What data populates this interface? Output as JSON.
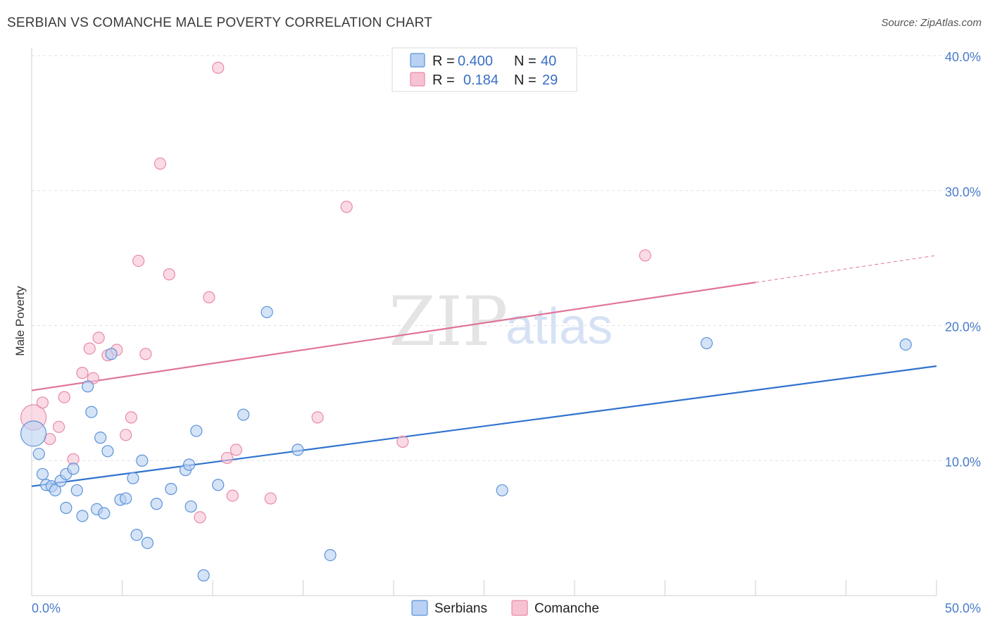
{
  "title": "SERBIAN VS COMANCHE MALE POVERTY CORRELATION CHART",
  "source": "Source: ZipAtlas.com",
  "watermark": {
    "zip": "ZIP",
    "atlas": "atlas"
  },
  "colors": {
    "serbians": "#5b93d9",
    "serbians_fill": "#b9d1f2",
    "serbians_line": "#2f72cf",
    "comanche": "#e98aa8",
    "comanche_fill": "#f7c3d3",
    "comanche_line": "#e07499",
    "tick_label": "#4a7cc9"
  },
  "legend": {
    "rows": [
      {
        "r_label": "R =",
        "r_value": "0.400",
        "n_label": "N =",
        "n_value": "40"
      },
      {
        "r_label": "R =",
        "r_value": "0.184",
        "n_label": "N =",
        "n_value": "29"
      }
    ]
  },
  "chart_data": {
    "type": "scatter",
    "title": "SERBIAN VS COMANCHE MALE POVERTY CORRELATION CHART",
    "xlabel": "",
    "ylabel": "Male Poverty",
    "xlim": [
      0,
      50
    ],
    "ylim": [
      0,
      40
    ],
    "x_tick_labels": [
      "0.0%",
      "50.0%"
    ],
    "y_ticks": [
      10,
      20,
      30,
      40
    ],
    "y_tick_labels": [
      "10.0%",
      "20.0%",
      "30.0%",
      "40.0%"
    ],
    "grid": true,
    "legend_position": "top-center",
    "series": [
      {
        "name": "Serbians",
        "r": 0.4,
        "n": 40,
        "trend": {
          "x": [
            0,
            50
          ],
          "y": [
            8.1,
            17.0
          ]
        },
        "points": [
          {
            "x": 0.1,
            "y": 12.0,
            "big": true
          },
          {
            "x": 0.4,
            "y": 10.5
          },
          {
            "x": 0.6,
            "y": 9.0
          },
          {
            "x": 0.8,
            "y": 8.2
          },
          {
            "x": 1.1,
            "y": 8.1
          },
          {
            "x": 1.3,
            "y": 7.8
          },
          {
            "x": 1.6,
            "y": 8.5
          },
          {
            "x": 1.9,
            "y": 9.0
          },
          {
            "x": 2.3,
            "y": 9.4
          },
          {
            "x": 1.9,
            "y": 6.5
          },
          {
            "x": 2.5,
            "y": 7.8
          },
          {
            "x": 2.8,
            "y": 5.9
          },
          {
            "x": 3.1,
            "y": 15.5
          },
          {
            "x": 3.3,
            "y": 13.6
          },
          {
            "x": 3.6,
            "y": 6.4
          },
          {
            "x": 3.8,
            "y": 11.7
          },
          {
            "x": 4.0,
            "y": 6.1
          },
          {
            "x": 4.2,
            "y": 10.7
          },
          {
            "x": 4.4,
            "y": 17.9
          },
          {
            "x": 4.9,
            "y": 7.1
          },
          {
            "x": 5.2,
            "y": 7.2
          },
          {
            "x": 5.6,
            "y": 8.7
          },
          {
            "x": 5.8,
            "y": 4.5
          },
          {
            "x": 6.1,
            "y": 10.0
          },
          {
            "x": 6.4,
            "y": 3.9
          },
          {
            "x": 6.9,
            "y": 6.8
          },
          {
            "x": 7.7,
            "y": 7.9
          },
          {
            "x": 8.5,
            "y": 9.3
          },
          {
            "x": 8.7,
            "y": 9.7
          },
          {
            "x": 8.8,
            "y": 6.6
          },
          {
            "x": 9.1,
            "y": 12.2
          },
          {
            "x": 9.5,
            "y": 1.5
          },
          {
            "x": 10.3,
            "y": 8.2
          },
          {
            "x": 11.7,
            "y": 13.4
          },
          {
            "x": 13.0,
            "y": 21.0
          },
          {
            "x": 14.7,
            "y": 10.8
          },
          {
            "x": 16.5,
            "y": 3.0
          },
          {
            "x": 26.0,
            "y": 7.8
          },
          {
            "x": 37.3,
            "y": 18.7
          },
          {
            "x": 48.3,
            "y": 18.6
          }
        ]
      },
      {
        "name": "Comanche",
        "r": 0.184,
        "n": 29,
        "trend": {
          "x": [
            0,
            50
          ],
          "y": [
            15.2,
            25.2
          ],
          "solid_until_x": 40
        },
        "points": [
          {
            "x": 0.1,
            "y": 13.2,
            "big": true
          },
          {
            "x": 0.6,
            "y": 14.3
          },
          {
            "x": 1.0,
            "y": 11.6
          },
          {
            "x": 1.5,
            "y": 12.5
          },
          {
            "x": 1.8,
            "y": 14.7
          },
          {
            "x": 2.3,
            "y": 10.1
          },
          {
            "x": 2.8,
            "y": 16.5
          },
          {
            "x": 3.2,
            "y": 18.3
          },
          {
            "x": 3.4,
            "y": 16.1
          },
          {
            "x": 3.7,
            "y": 19.1
          },
          {
            "x": 4.2,
            "y": 17.8
          },
          {
            "x": 4.7,
            "y": 18.2
          },
          {
            "x": 5.2,
            "y": 11.9
          },
          {
            "x": 5.5,
            "y": 13.2
          },
          {
            "x": 5.9,
            "y": 24.8
          },
          {
            "x": 6.3,
            "y": 17.9
          },
          {
            "x": 7.1,
            "y": 32.0
          },
          {
            "x": 7.6,
            "y": 23.8
          },
          {
            "x": 9.3,
            "y": 5.8
          },
          {
            "x": 9.8,
            "y": 22.1
          },
          {
            "x": 10.8,
            "y": 10.2
          },
          {
            "x": 10.3,
            "y": 39.1
          },
          {
            "x": 11.1,
            "y": 7.4
          },
          {
            "x": 11.3,
            "y": 10.8
          },
          {
            "x": 13.2,
            "y": 7.2
          },
          {
            "x": 15.8,
            "y": 13.2
          },
          {
            "x": 17.4,
            "y": 28.8
          },
          {
            "x": 20.5,
            "y": 11.4
          },
          {
            "x": 33.9,
            "y": 25.2
          }
        ]
      }
    ]
  },
  "bottom_legend": [
    {
      "label": "Serbians"
    },
    {
      "label": "Comanche"
    }
  ]
}
